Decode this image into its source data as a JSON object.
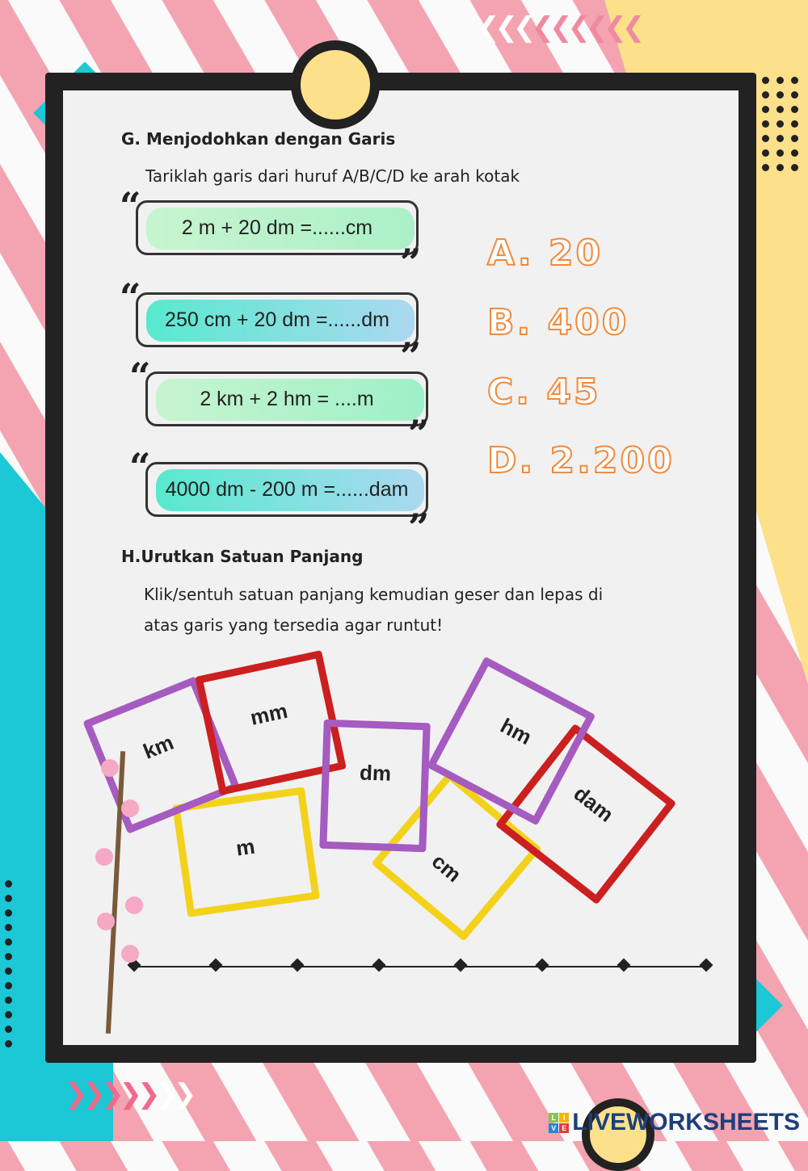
{
  "section_g": {
    "title": "G. Menjodohkan dengan Garis",
    "instruction": "Tariklah garis dari huruf A/B/C/D ke arah kotak",
    "questions": [
      "2 m + 20 dm =......cm",
      "250 cm + 20 dm =......dm",
      "2 km + 2 hm = ....m",
      "4000 dm - 200 m =......dam"
    ],
    "answers": [
      "A. 20",
      "B. 400",
      "C. 45",
      "D. 2.200"
    ]
  },
  "section_h": {
    "title": "H.Urutkan Satuan Panjang",
    "instruction_line1": "Klik/sentuh satuan panjang kemudian geser dan lepas di",
    "instruction_line2": "atas garis   yang tersedia agar runtut!",
    "units": {
      "km": "km",
      "mm": "mm",
      "dm": "dm",
      "hm": "hm",
      "m": "m",
      "cm": "cm",
      "dam": "dam"
    }
  },
  "logo": {
    "text": "LIVEWORKSHEETS",
    "badge": [
      "L",
      "I",
      "V",
      "E"
    ]
  },
  "colors": {
    "purple": "#a55bbf",
    "red": "#cc1f1f",
    "yellow": "#f3d21c",
    "answer_orange": "#f08a3c",
    "cyan": "#1cc7d6",
    "pink": "#f4a3b0"
  }
}
